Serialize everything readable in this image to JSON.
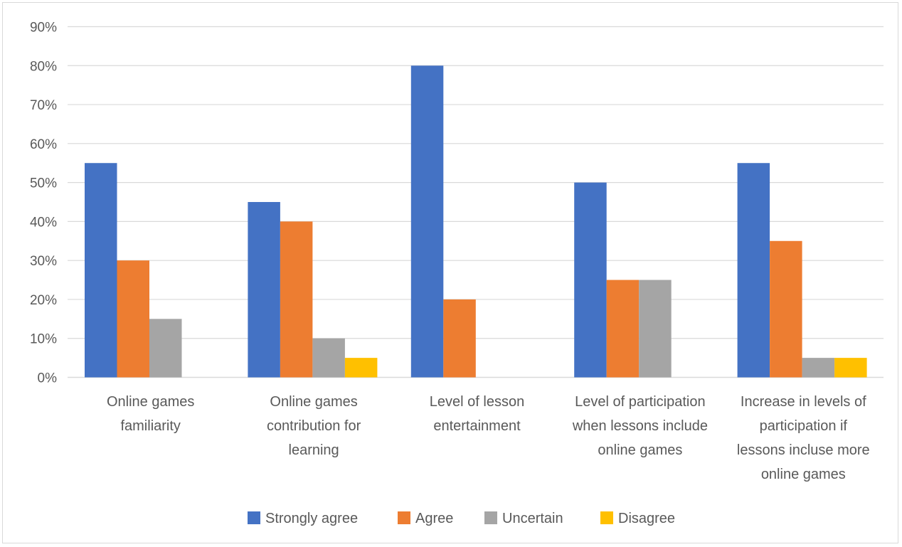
{
  "chart_data": {
    "type": "bar",
    "title": "",
    "xlabel": "",
    "ylabel": "",
    "ylim": [
      0,
      90
    ],
    "yticks": [
      0,
      10,
      20,
      30,
      40,
      50,
      60,
      70,
      80,
      90
    ],
    "y_tick_labels": [
      "0%",
      "10%",
      "20%",
      "30%",
      "40%",
      "50%",
      "60%",
      "70%",
      "80%",
      "90%"
    ],
    "grid": true,
    "legend_position": "bottom",
    "categories": [
      [
        "Online games",
        "familiarity"
      ],
      [
        "Online games",
        "contribution for",
        "learning"
      ],
      [
        "Level of lesson",
        "entertainment"
      ],
      [
        "Level of participation",
        "when lessons include",
        "online games"
      ],
      [
        "Increase in levels of",
        "participation if",
        "lessons incluse more",
        "online games"
      ]
    ],
    "series": [
      {
        "name": "Strongly agree",
        "color": "#4472c4",
        "values": [
          55,
          45,
          80,
          50,
          55
        ]
      },
      {
        "name": "Agree",
        "color": "#ed7d31",
        "values": [
          30,
          40,
          20,
          25,
          35
        ]
      },
      {
        "name": "Uncertain",
        "color": "#a5a5a5",
        "values": [
          15,
          10,
          0,
          25,
          5
        ]
      },
      {
        "name": "Disagree",
        "color": "#ffc000",
        "values": [
          0,
          5,
          0,
          0,
          5
        ]
      }
    ]
  }
}
